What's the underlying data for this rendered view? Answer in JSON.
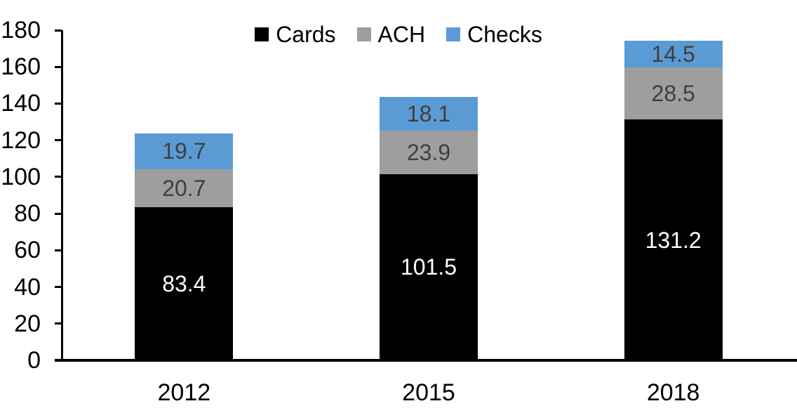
{
  "chart_data": {
    "type": "bar",
    "stacked": true,
    "title": "",
    "xlabel": "",
    "ylabel": "",
    "categories": [
      "2012",
      "2015",
      "2018"
    ],
    "series": [
      {
        "name": "Cards",
        "values": [
          83.4,
          101.5,
          131.2
        ],
        "color": "#000000",
        "label_color": "#FFFFFF"
      },
      {
        "name": "ACH",
        "values": [
          20.7,
          23.9,
          28.5
        ],
        "color": "#9E9E9E",
        "label_color": "#3F3F3F"
      },
      {
        "name": "Checks",
        "values": [
          19.7,
          18.1,
          14.5
        ],
        "color": "#5B9BD5",
        "label_color": "#3F3F3F"
      }
    ],
    "totals": [
      123.8,
      143.5,
      174.2
    ],
    "ylim": [
      0,
      180
    ],
    "ytick_step": 20,
    "yticks": [
      0,
      20,
      40,
      60,
      80,
      100,
      120,
      140,
      160,
      180
    ],
    "grid": false,
    "legend_position": "top-center",
    "axis_color": "#000000",
    "background_color": "#FFFFFF"
  }
}
